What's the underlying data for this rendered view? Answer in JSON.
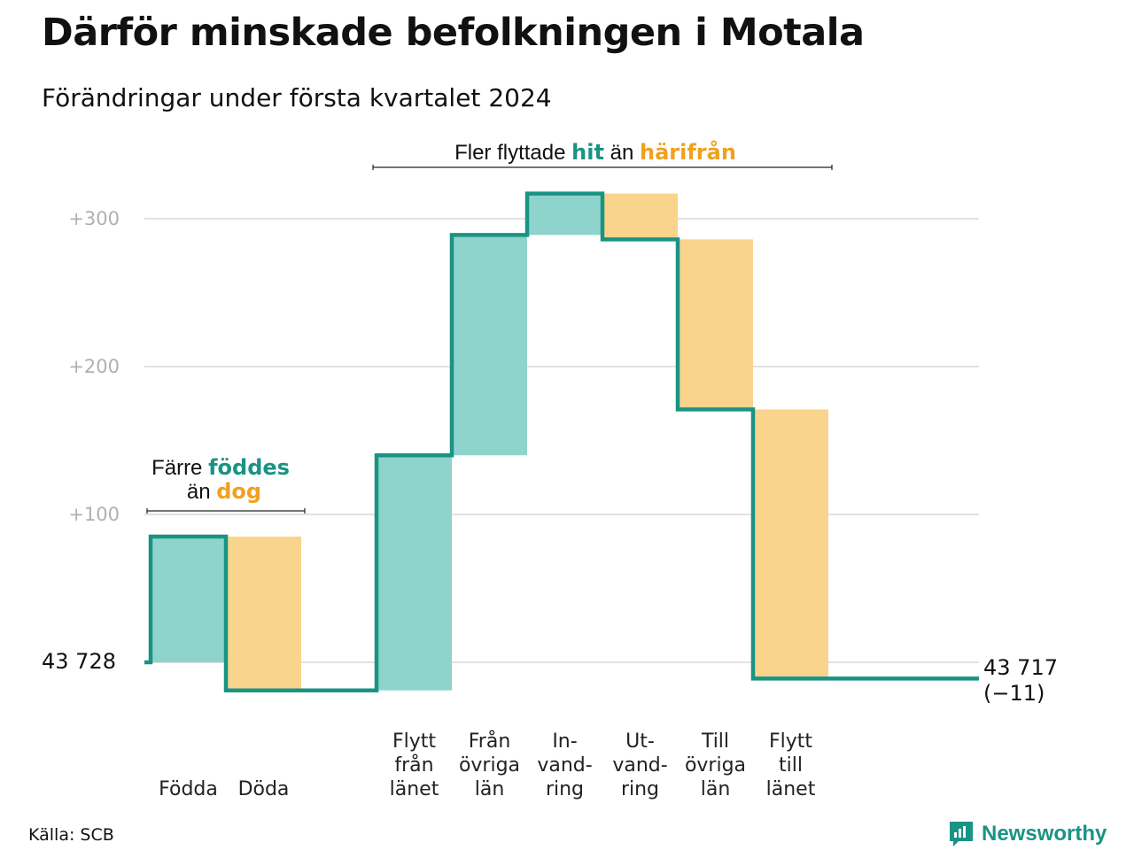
{
  "title": "Därför minskade befolkningen i Motala",
  "subtitle": "Förändringar under första kvartalet 2024",
  "source": "Källa: SCB",
  "brand": "Newsworthy",
  "colors": {
    "increase": "#8ed4cc",
    "decrease": "#f9d48c",
    "line": "#1a9384",
    "grid": "#e2e2e2",
    "accent_orange": "#f0a11f"
  },
  "annotations": {
    "births": {
      "w1": "Färre",
      "w2": "föddes",
      "w3": "än",
      "w4": "dog"
    },
    "moves": {
      "w1": "Fler flyttade",
      "w2": "hit",
      "w3": "än",
      "w4": "härifrån"
    }
  },
  "chart_data": {
    "type": "bar",
    "subtype": "waterfall",
    "start_value": 43728,
    "start_label": "43  728",
    "end_value": 43717,
    "end_label": "43 717",
    "change_label": "(−11)",
    "yticks": [
      "+100",
      "+200",
      "+300"
    ],
    "ylim": [
      -25,
      320
    ],
    "steps": [
      {
        "label": [
          "Födda"
        ],
        "value": 85,
        "kind": "increase"
      },
      {
        "label": [
          "Döda"
        ],
        "value": -104,
        "kind": "decrease"
      },
      {
        "label": [
          ""
        ],
        "value": 0,
        "kind": "none"
      },
      {
        "label": [
          "Flytt",
          "från",
          "länet"
        ],
        "value": 159,
        "kind": "increase"
      },
      {
        "label": [
          "Från",
          "övriga",
          "län"
        ],
        "value": 149,
        "kind": "increase"
      },
      {
        "label": [
          "In-",
          "vand-",
          "ring"
        ],
        "value": 28,
        "kind": "increase"
      },
      {
        "label": [
          "Ut-",
          "vand-",
          "ring"
        ],
        "value": -31,
        "kind": "decrease"
      },
      {
        "label": [
          "Till",
          "övriga",
          "län"
        ],
        "value": -115,
        "kind": "decrease"
      },
      {
        "label": [
          "Flytt",
          "till",
          "länet"
        ],
        "value": -182,
        "kind": "decrease"
      }
    ]
  }
}
